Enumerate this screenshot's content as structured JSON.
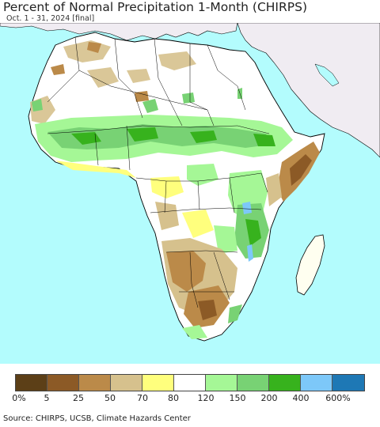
{
  "header": {
    "title": "Percent of Normal Precipitation 1-Month (CHIRPS)",
    "subtitle": "Oct. 1 - 31, 2024 [final]"
  },
  "map": {
    "ocean_color": "#b3fcfd",
    "land_outside_color": "#f0ecf2",
    "border_color": "#000000"
  },
  "legend": {
    "colors": [
      "#5c3f17",
      "#8c5a26",
      "#bb8a49",
      "#d6c18d",
      "#ffff7d",
      "#ffffff",
      "#a5f796",
      "#78d274",
      "#37b21d",
      "#7dc8f9",
      "#1e78b5"
    ],
    "ticks": [
      "0%",
      "5",
      "25",
      "50",
      "70",
      "80",
      "120",
      "150",
      "200",
      "400",
      "600%"
    ]
  },
  "footer": {
    "source": "Source: CHIRPS, UCSB, Climate Hazards Center"
  }
}
